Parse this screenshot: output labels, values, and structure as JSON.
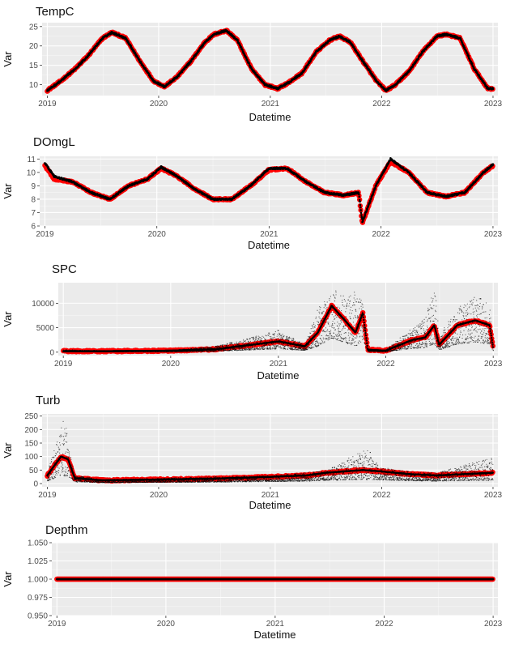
{
  "chart_data": [
    {
      "type": "scatter",
      "title": "TempC",
      "xlabel": "Datetime",
      "ylabel": "Var",
      "x_ticks": [
        "2019",
        "2020",
        "2021",
        "2022",
        "2023"
      ],
      "y_ticks": [
        "10",
        "15",
        "20",
        "25"
      ],
      "ylim": [
        7.2,
        26
      ],
      "xlim": [
        "2018-12-15",
        "2023-01-17"
      ],
      "grid": true,
      "series": [
        {
          "color": "#ff0000",
          "x": [
            "2019-01-01",
            "2019-02-15",
            "2019-04-01",
            "2019-05-15",
            "2019-07-01",
            "2019-08-01",
            "2019-09-15",
            "2019-11-01",
            "2019-12-15",
            "2020-01-20",
            "2020-03-01",
            "2020-04-15",
            "2020-06-01",
            "2020-07-01",
            "2020-08-10",
            "2020-09-15",
            "2020-11-01",
            "2020-12-15",
            "2021-01-25",
            "2021-03-01",
            "2021-04-15",
            "2021-06-01",
            "2021-07-15",
            "2021-08-15",
            "2021-09-20",
            "2021-11-01",
            "2021-12-15",
            "2022-01-15",
            "2022-02-15",
            "2022-04-01",
            "2022-05-15",
            "2022-07-01",
            "2022-08-01",
            "2022-09-15",
            "2022-11-01",
            "2022-12-15",
            "2023-01-01"
          ],
          "y": [
            8.5,
            11,
            14,
            17.5,
            22,
            23.5,
            22,
            16,
            11,
            9.5,
            12,
            16,
            21,
            23,
            24,
            21.5,
            14,
            10,
            9,
            10.5,
            13,
            18.5,
            21.5,
            22.5,
            21,
            16,
            11,
            8.5,
            10,
            13.5,
            18.5,
            22.5,
            23,
            22,
            14,
            9,
            9
          ]
        },
        {
          "color": "#000000",
          "x": [
            "2019-01-01",
            "2019-02-15",
            "2019-04-01",
            "2019-05-15",
            "2019-07-01",
            "2019-08-01",
            "2019-09-15",
            "2019-11-01",
            "2019-12-15",
            "2020-01-20",
            "2020-03-01",
            "2020-04-15",
            "2020-06-01",
            "2020-07-01",
            "2020-08-10",
            "2020-09-15",
            "2020-11-01",
            "2020-12-15",
            "2021-01-25",
            "2021-03-01",
            "2021-04-15",
            "2021-06-01",
            "2021-07-15",
            "2021-08-15",
            "2021-09-20",
            "2021-11-01",
            "2021-12-15",
            "2022-01-15",
            "2022-02-15",
            "2022-04-01",
            "2022-05-15",
            "2022-07-01",
            "2022-08-01",
            "2022-09-15",
            "2022-11-01",
            "2022-12-15",
            "2023-01-01"
          ],
          "y": [
            8.5,
            11,
            14,
            17.5,
            22,
            23.5,
            22,
            16,
            11,
            9.5,
            12,
            16,
            21,
            23,
            24,
            21.5,
            14,
            10,
            9,
            10.5,
            13,
            18.5,
            21.5,
            22.5,
            21,
            16,
            11,
            8.5,
            10,
            13.5,
            18.5,
            22.5,
            23,
            22,
            14,
            9,
            9
          ]
        }
      ]
    },
    {
      "type": "scatter",
      "title": "DOmgL",
      "xlabel": "Datetime",
      "ylabel": "Var",
      "x_ticks": [
        "2019",
        "2020",
        "2021",
        "2022",
        "2023"
      ],
      "y_ticks": [
        "6",
        "7",
        "8",
        "9",
        "10",
        "11"
      ],
      "ylim": [
        6,
        11.2
      ],
      "xlim": [
        "2018-12-15",
        "2023-01-17"
      ],
      "grid": true,
      "series": [
        {
          "color": "#ff0000",
          "x": [
            "2019-01-01",
            "2019-02-01",
            "2019-04-01",
            "2019-06-01",
            "2019-08-01",
            "2019-10-01",
            "2019-12-01",
            "2020-01-15",
            "2020-03-01",
            "2020-05-01",
            "2020-07-01",
            "2020-09-01",
            "2020-11-01",
            "2021-01-01",
            "2021-03-01",
            "2021-05-01",
            "2021-07-01",
            "2021-09-01",
            "2021-10-20",
            "2021-11-01",
            "2021-12-15",
            "2022-02-01",
            "2022-04-01",
            "2022-06-01",
            "2022-08-01",
            "2022-10-01",
            "2022-12-01",
            "2023-01-01"
          ],
          "y": [
            10.5,
            9.5,
            9.3,
            8.5,
            8,
            9,
            9.5,
            10.3,
            9.8,
            8.8,
            8,
            8,
            9,
            10.2,
            10.3,
            9.3,
            8.5,
            8.3,
            8.5,
            6.2,
            9,
            10.8,
            10,
            8.5,
            8.2,
            8.5,
            10,
            10.5
          ]
        },
        {
          "color": "#000000",
          "x": [
            "2019-01-01",
            "2019-02-01",
            "2019-04-01",
            "2019-06-01",
            "2019-08-01",
            "2019-10-01",
            "2019-12-01",
            "2020-01-15",
            "2020-03-01",
            "2020-05-01",
            "2020-07-01",
            "2020-09-01",
            "2020-11-01",
            "2021-01-01",
            "2021-03-01",
            "2021-05-01",
            "2021-07-01",
            "2021-09-01",
            "2021-10-20",
            "2021-11-01",
            "2021-12-15",
            "2022-02-01",
            "2022-04-01",
            "2022-06-01",
            "2022-08-01",
            "2022-10-01",
            "2022-12-01",
            "2023-01-01"
          ],
          "y": [
            10.7,
            9.7,
            9.3,
            8.5,
            8,
            9,
            9.5,
            10.4,
            9.8,
            8.8,
            8,
            8,
            9,
            10.3,
            10.3,
            9.3,
            8.5,
            8.3,
            8.5,
            6.3,
            9,
            11,
            10,
            8.5,
            8.2,
            8.5,
            10,
            10.6
          ]
        }
      ]
    },
    {
      "type": "scatter",
      "title": "SPC",
      "xlabel": "Datetime",
      "ylabel": "Var",
      "x_ticks": [
        "2019",
        "2020",
        "2021",
        "2022",
        "2023"
      ],
      "y_ticks": [
        "0",
        "5000",
        "10000"
      ],
      "ylim": [
        -700,
        14200
      ],
      "xlim": [
        "2018-12-15",
        "2023-01-17"
      ],
      "grid": true,
      "series": [
        {
          "color": "#ff0000",
          "x": [
            "2019-01-01",
            "2019-06-01",
            "2020-01-01",
            "2020-06-01",
            "2020-10-01",
            "2021-01-01",
            "2021-04-01",
            "2021-05-15",
            "2021-07-01",
            "2021-08-15",
            "2021-09-20",
            "2021-10-15",
            "2021-11-01",
            "2022-01-01",
            "2022-04-01",
            "2022-05-15",
            "2022-06-15",
            "2022-07-01",
            "2022-09-01",
            "2022-11-01",
            "2022-12-20",
            "2023-01-01"
          ],
          "y": [
            200,
            200,
            300,
            600,
            1500,
            2200,
            1200,
            4000,
            9500,
            6500,
            4000,
            8000,
            500,
            300,
            2500,
            3000,
            5500,
            1500,
            5500,
            6500,
            5500,
            800
          ]
        },
        {
          "color": "#000000",
          "x": [
            "2019-01-01",
            "2019-06-01",
            "2020-01-01",
            "2020-06-01",
            "2020-10-01",
            "2021-01-01",
            "2021-04-01",
            "2021-05-15",
            "2021-07-01",
            "2021-08-15",
            "2021-09-20",
            "2021-10-15",
            "2021-11-01",
            "2022-01-01",
            "2022-04-01",
            "2022-05-15",
            "2022-06-15",
            "2022-07-01",
            "2022-09-01",
            "2022-11-01",
            "2022-12-20",
            "2023-01-01"
          ],
          "y": [
            500,
            300,
            400,
            1200,
            3000,
            4500,
            1500,
            9000,
            13000,
            11500,
            12500,
            10500,
            500,
            500,
            5000,
            7000,
            14000,
            3500,
            9000,
            11500,
            10000,
            1500
          ]
        }
      ]
    },
    {
      "type": "scatter",
      "title": "Turb",
      "xlabel": "Datetime",
      "ylabel": "Var",
      "x_ticks": [
        "2019",
        "2020",
        "2021",
        "2022",
        "2023"
      ],
      "y_ticks": [
        "0",
        "50",
        "100",
        "150",
        "200",
        "250"
      ],
      "ylim": [
        -12,
        258
      ],
      "xlim": [
        "2018-12-15",
        "2023-01-17"
      ],
      "grid": true,
      "series": [
        {
          "color": "#ff0000",
          "x": [
            "2019-01-01",
            "2019-01-20",
            "2019-02-15",
            "2019-03-10",
            "2019-04-01",
            "2019-07-01",
            "2020-01-01",
            "2020-07-01",
            "2021-01-01",
            "2021-05-01",
            "2021-07-01",
            "2021-11-01",
            "2022-01-01",
            "2022-04-01",
            "2022-07-01",
            "2022-10-01",
            "2023-01-01"
          ],
          "y": [
            30,
            60,
            100,
            90,
            20,
            12,
            15,
            18,
            25,
            30,
            40,
            50,
            45,
            35,
            30,
            35,
            40
          ]
        },
        {
          "color": "#000000",
          "x": [
            "2019-01-01",
            "2019-01-20",
            "2019-02-15",
            "2019-03-01",
            "2019-03-10",
            "2019-04-01",
            "2019-07-01",
            "2020-01-01",
            "2020-07-01",
            "2021-01-01",
            "2021-05-01",
            "2021-07-01",
            "2021-11-15",
            "2022-01-01",
            "2022-04-01",
            "2022-07-01",
            "2022-10-01",
            "2023-01-01"
          ],
          "y": [
            40,
            120,
            220,
            245,
            150,
            30,
            15,
            20,
            25,
            30,
            40,
            50,
            130,
            60,
            45,
            40,
            70,
            95
          ]
        }
      ]
    },
    {
      "type": "scatter",
      "title": "Depthm",
      "xlabel": "Datetime",
      "ylabel": "Var",
      "x_ticks": [
        "2019",
        "2020",
        "2021",
        "2022",
        "2023"
      ],
      "y_ticks": [
        "0.950",
        "0.975",
        "1.000",
        "1.025",
        "1.050"
      ],
      "ylim": [
        0.95,
        1.05
      ],
      "xlim": [
        "2018-12-15",
        "2023-01-17"
      ],
      "grid": true,
      "series": [
        {
          "color": "#ff0000",
          "x": [
            "2019-01-01",
            "2023-01-01"
          ],
          "y": [
            1.0,
            1.0
          ]
        },
        {
          "color": "#000000",
          "x": [
            "2019-01-01",
            "2023-01-01"
          ],
          "y": [
            1.0,
            1.0
          ]
        }
      ]
    }
  ]
}
